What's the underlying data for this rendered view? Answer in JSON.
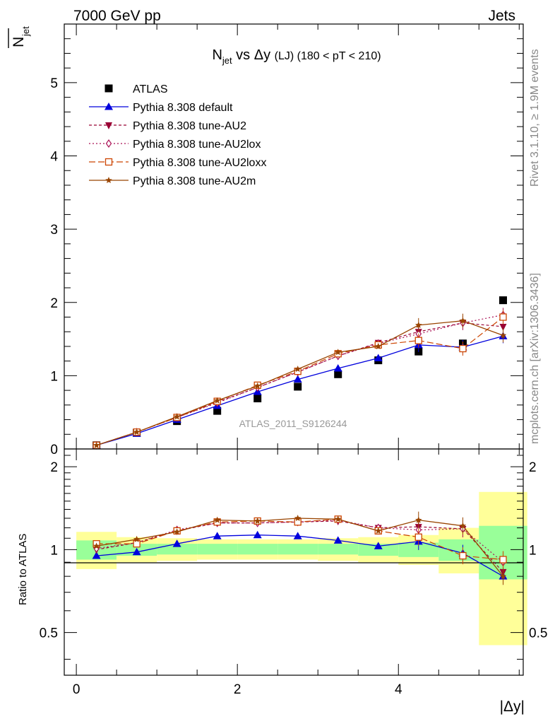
{
  "header": {
    "left": "7000 GeV pp",
    "right": "Jets"
  },
  "side_labels": {
    "rivet": "Rivet 3.1.10, ≥ 1.9M events",
    "mcplots": "mcplots.cern.ch [arXiv:1306.3436]"
  },
  "watermark": "ATLAS_2011_S9126244",
  "colors": {
    "data": "#000000",
    "default": "#0000dd",
    "au2": "#990033",
    "au2lox": "#aa1155",
    "au2loxx": "#cc4400",
    "au2m": "#994400",
    "band_inner": "#99ff99",
    "band_outer": "#ffff99"
  },
  "chart_data": [
    {
      "type": "scatter",
      "panel": "main",
      "title": {
        "main": "N",
        "sub": "jet",
        "rest": " vs Δy ",
        "paren": "(LJ)",
        "tail": " (180 < pT < 210)"
      },
      "ylabel": {
        "main": "N",
        "sub": "jet"
      },
      "xlim": [
        -0.15,
        5.55
      ],
      "ylim": [
        0,
        5.8
      ],
      "yticks": [
        "0",
        "1",
        "2",
        "3",
        "4",
        "5"
      ],
      "x": [
        0.25,
        0.75,
        1.25,
        1.75,
        2.25,
        2.75,
        3.25,
        3.75,
        4.25,
        4.8,
        5.3
      ],
      "xerr": [
        0.25,
        0.25,
        0.25,
        0.25,
        0.25,
        0.25,
        0.25,
        0.25,
        0.25,
        0.3,
        0.3
      ],
      "series": [
        {
          "name": "ATLAS",
          "key": "data",
          "marker": "square",
          "values": [
            0.05,
            0.22,
            0.38,
            0.52,
            0.69,
            0.85,
            1.02,
            1.21,
            1.33,
            1.44,
            2.03
          ]
        },
        {
          "name": "Pythia 8.308 default",
          "key": "default",
          "marker": "triangle-up",
          "values": [
            0.05,
            0.21,
            0.4,
            0.59,
            0.78,
            0.95,
            1.1,
            1.24,
            1.42,
            1.39,
            1.54
          ]
        },
        {
          "name": "Pythia 8.308 tune-AU2",
          "key": "au2",
          "marker": "triangle-down",
          "values": [
            0.05,
            0.23,
            0.43,
            0.64,
            0.84,
            1.05,
            1.27,
            1.45,
            1.6,
            1.72,
            1.67
          ]
        },
        {
          "name": "Pythia 8.308 tune-AU2lox",
          "key": "au2lox",
          "marker": "diamond",
          "values": [
            0.05,
            0.23,
            0.43,
            0.63,
            0.84,
            1.05,
            1.27,
            1.44,
            1.57,
            1.72,
            1.83
          ]
        },
        {
          "name": "Pythia 8.308 tune-AU2loxx",
          "key": "au2loxx",
          "marker": "open-square",
          "values": [
            0.05,
            0.23,
            0.43,
            0.65,
            0.87,
            1.06,
            1.3,
            1.42,
            1.48,
            1.37,
            1.8
          ]
        },
        {
          "name": "Pythia 8.308 tune-AU2m",
          "key": "au2m",
          "marker": "star",
          "values": [
            0.05,
            0.23,
            0.44,
            0.66,
            0.86,
            1.09,
            1.32,
            1.4,
            1.69,
            1.75,
            1.55
          ]
        }
      ]
    },
    {
      "type": "line",
      "panel": "ratio",
      "ylabel": "Ratio to ATLAS",
      "xlabel": "|Δy|",
      "xlim": [
        -0.15,
        5.55
      ],
      "ylim": [
        0.35,
        2.32
      ],
      "xticks": [
        "0",
        "2",
        "4"
      ],
      "yticks": [
        "0.5",
        "1",
        "2"
      ],
      "bands": {
        "inner": [
          [
            0.92,
            1.08
          ],
          [
            0.95,
            1.05
          ],
          [
            0.96,
            1.05
          ],
          [
            0.96,
            1.05
          ],
          [
            0.96,
            1.05
          ],
          [
            0.96,
            1.05
          ],
          [
            0.96,
            1.05
          ],
          [
            0.95,
            1.05
          ],
          [
            0.94,
            1.06
          ],
          [
            0.91,
            1.09
          ],
          [
            0.78,
            1.22
          ]
        ],
        "outer": [
          [
            0.85,
            1.16
          ],
          [
            0.9,
            1.11
          ],
          [
            0.91,
            1.1
          ],
          [
            0.92,
            1.09
          ],
          [
            0.92,
            1.09
          ],
          [
            0.92,
            1.09
          ],
          [
            0.91,
            1.1
          ],
          [
            0.9,
            1.11
          ],
          [
            0.88,
            1.13
          ],
          [
            0.82,
            1.2
          ],
          [
            0.45,
            1.62
          ]
        ]
      },
      "series": [
        {
          "name": "Pythia 8.308 default",
          "key": "default",
          "values": [
            0.95,
            0.98,
            1.05,
            1.12,
            1.13,
            1.12,
            1.08,
            1.03,
            1.07,
            0.97,
            0.8
          ]
        },
        {
          "name": "Pythia 8.308 tune-AU2",
          "key": "au2",
          "values": [
            1.0,
            1.06,
            1.17,
            1.25,
            1.25,
            1.26,
            1.27,
            1.2,
            1.21,
            1.19,
            0.83
          ]
        },
        {
          "name": "Pythia 8.308 tune-AU2lox",
          "key": "au2lox",
          "values": [
            1.01,
            1.06,
            1.18,
            1.25,
            1.25,
            1.26,
            1.28,
            1.2,
            1.18,
            1.19,
            0.9
          ]
        },
        {
          "name": "Pythia 8.308 tune-AU2loxx",
          "key": "au2loxx",
          "values": [
            1.05,
            1.05,
            1.17,
            1.26,
            1.27,
            1.26,
            1.29,
            1.17,
            1.11,
            0.95,
            0.92
          ]
        },
        {
          "name": "Pythia 8.308 tune-AU2m",
          "key": "au2m",
          "values": [
            1.03,
            1.09,
            1.16,
            1.28,
            1.27,
            1.3,
            1.29,
            1.17,
            1.28,
            1.22,
            0.8
          ]
        }
      ]
    }
  ]
}
